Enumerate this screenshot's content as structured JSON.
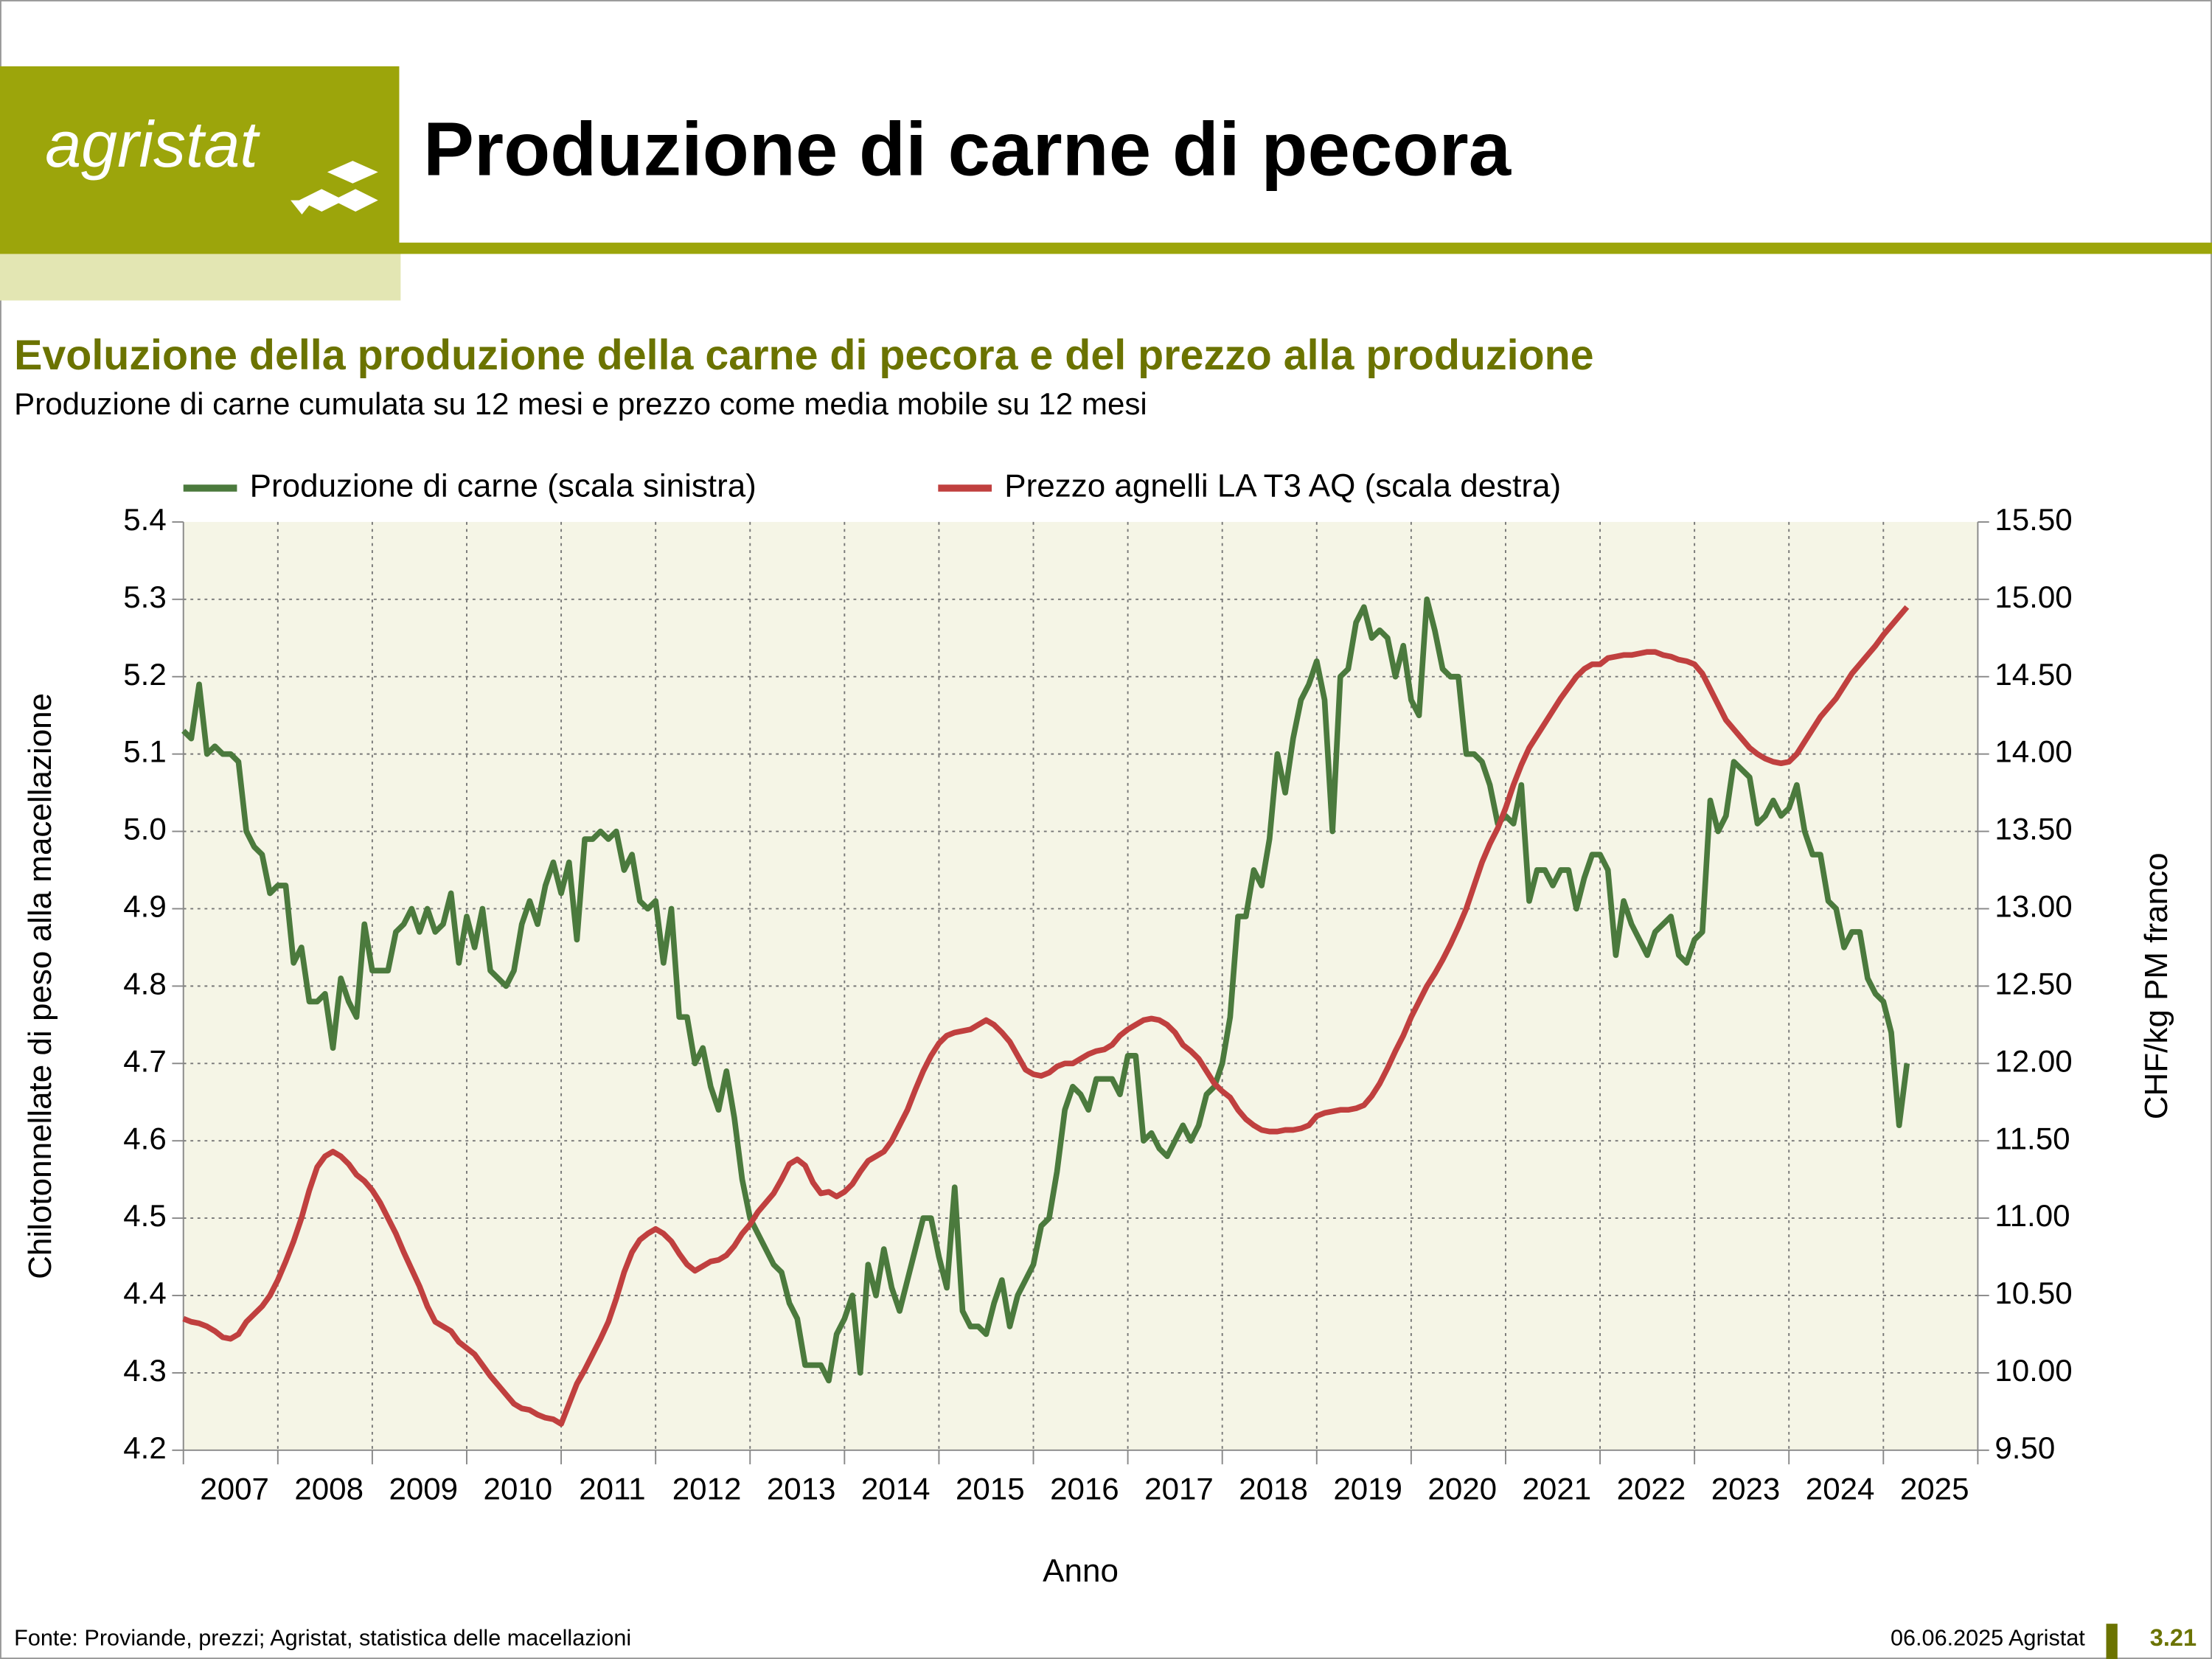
{
  "header": {
    "logo": "agristat",
    "title": "Produzione di carne di pecora"
  },
  "footer": {
    "source": "Fonte: Proviande, prezzi; Agristat, statistica delle macellazioni",
    "date": "06.06.2025 Agristat",
    "page": "3.21"
  },
  "chart_data": {
    "type": "line",
    "title": "Evoluzione della produzione della carne di pecora e del prezzo alla produzione",
    "subtitle": "Produzione di carne cumulata su 12 mesi e prezzo come media mobile su 12 mesi",
    "x_label": "Anno",
    "y_label": "Chilotonnellate di peso alla macellazione",
    "y2_label": "CHF/kg PM franco",
    "legend": "top",
    "grid": true,
    "categories": [
      null,
      null,
      null,
      null,
      null,
      null,
      "2007",
      null,
      null,
      null,
      null,
      null,
      null,
      null,
      null,
      null,
      null,
      null,
      "2008",
      null,
      null,
      null,
      null,
      null,
      null,
      null,
      null,
      null,
      null,
      null,
      "2009",
      null,
      null,
      null,
      null,
      null,
      null,
      null,
      null,
      null,
      null,
      null,
      "2010",
      null,
      null,
      null,
      null,
      null,
      null,
      null,
      null,
      null,
      null,
      null,
      "2011",
      null,
      null,
      null,
      null,
      null,
      null,
      null,
      null,
      null,
      null,
      null,
      "2012",
      null,
      null,
      null,
      null,
      null,
      null,
      null,
      null,
      null,
      null,
      null,
      "2013",
      null,
      null,
      null,
      null,
      null,
      null,
      null,
      null,
      null,
      null,
      null,
      "2014",
      null,
      null,
      null,
      null,
      null,
      null,
      null,
      null,
      null,
      null,
      null,
      "2015",
      null,
      null,
      null,
      null,
      null,
      null,
      null,
      null,
      null,
      null,
      null,
      "2016",
      null,
      null,
      null,
      null,
      null,
      null,
      null,
      null,
      null,
      null,
      null,
      "2017",
      null,
      null,
      null,
      null,
      null,
      null,
      null,
      null,
      null,
      null,
      null,
      "2018",
      null,
      null,
      null,
      null,
      null,
      null,
      null,
      null,
      null,
      null,
      null,
      "2019",
      null,
      null,
      null,
      null,
      null,
      null,
      null,
      null,
      null,
      null,
      null,
      "2020",
      null,
      null,
      null,
      null,
      null,
      null,
      null,
      null,
      null,
      null,
      null,
      "2021",
      null,
      null,
      null,
      null,
      null,
      null,
      null,
      null,
      null,
      null,
      null,
      "2022",
      null,
      null,
      null,
      null,
      null,
      null,
      null,
      null,
      null,
      null,
      null,
      "2023",
      null,
      null,
      null,
      null,
      null,
      null,
      null,
      null,
      null,
      null,
      null,
      "2024",
      null,
      null,
      null,
      null,
      null,
      null,
      null,
      null,
      null,
      null,
      null,
      "2025",
      null,
      null,
      null,
      null,
      null
    ],
    "ylim": [
      4.2,
      5.4
    ],
    "yticks": [
      4.2,
      4.3,
      4.4,
      4.5,
      4.6,
      4.7,
      4.8,
      4.9,
      {
        "value": 5,
        "label": "5.0"
      },
      5.1,
      5.2,
      5.3,
      5.4
    ],
    "y2lim": [
      9.5,
      15.5
    ],
    "y2ticks": [
      {
        "value": 9.5,
        "label": "9.50"
      },
      {
        "value": 10,
        "label": "10.00"
      },
      {
        "value": 10.5,
        "label": "10.50"
      },
      {
        "value": 11,
        "label": "11.00"
      },
      {
        "value": 11.5,
        "label": "11.50"
      },
      {
        "value": 12,
        "label": "12.00"
      },
      {
        "value": 12.5,
        "label": "12.50"
      },
      {
        "value": 13,
        "label": "13.00"
      },
      {
        "value": 13.5,
        "label": "13.50"
      },
      {
        "value": 14,
        "label": "14.00"
      },
      {
        "value": 14.5,
        "label": "14.50"
      },
      {
        "value": 15,
        "label": "15.00"
      },
      {
        "value": 15.5,
        "label": "15.50"
      }
    ],
    "series": [
      {
        "name": "Produzione di carne (scala sinistra)",
        "color": "#4b7a3d",
        "axis": "y",
        "values": [
          5.13,
          5.12,
          5.19,
          5.1,
          5.11,
          5.1,
          5.1,
          5.09,
          5.0,
          4.98,
          4.97,
          4.92,
          4.93,
          4.93,
          4.83,
          4.85,
          4.78,
          4.78,
          4.79,
          4.72,
          4.81,
          4.78,
          4.76,
          4.88,
          4.82,
          4.82,
          4.82,
          4.87,
          4.88,
          4.9,
          4.87,
          4.9,
          4.87,
          4.88,
          4.92,
          4.83,
          4.89,
          4.85,
          4.9,
          4.82,
          4.81,
          4.8,
          4.82,
          4.88,
          4.91,
          4.88,
          4.93,
          4.96,
          4.92,
          4.96,
          4.86,
          4.99,
          4.99,
          5.0,
          4.99,
          5.0,
          4.95,
          4.97,
          4.91,
          4.9,
          4.91,
          4.83,
          4.9,
          4.76,
          4.76,
          4.7,
          4.72,
          4.67,
          4.64,
          4.69,
          4.63,
          4.55,
          4.5,
          4.48,
          4.46,
          4.44,
          4.43,
          4.39,
          4.37,
          4.31,
          4.31,
          4.31,
          4.29,
          4.35,
          4.37,
          4.4,
          4.3,
          4.44,
          4.4,
          4.46,
          4.41,
          4.38,
          4.42,
          4.46,
          4.5,
          4.5,
          4.45,
          4.41,
          4.54,
          4.38,
          4.36,
          4.36,
          4.35,
          4.39,
          4.42,
          4.36,
          4.4,
          4.42,
          4.44,
          4.49,
          4.5,
          4.56,
          4.64,
          4.67,
          4.66,
          4.64,
          4.68,
          4.68,
          4.68,
          4.66,
          4.71,
          4.71,
          4.6,
          4.61,
          4.59,
          4.58,
          4.6,
          4.62,
          4.6,
          4.62,
          4.66,
          4.67,
          4.7,
          4.76,
          4.89,
          4.89,
          4.95,
          4.93,
          4.99,
          5.1,
          5.05,
          5.12,
          5.17,
          5.19,
          5.22,
          5.17,
          5.0,
          5.2,
          5.21,
          5.27,
          5.29,
          5.25,
          5.26,
          5.25,
          5.2,
          5.24,
          5.17,
          5.15,
          5.3,
          5.26,
          5.21,
          5.2,
          5.2,
          5.1,
          5.1,
          5.09,
          5.06,
          5.01,
          5.02,
          5.01,
          5.06,
          4.91,
          4.95,
          4.95,
          4.93,
          4.95,
          4.95,
          4.9,
          4.94,
          4.97,
          4.97,
          4.95,
          4.84,
          4.91,
          4.88,
          4.86,
          4.84,
          4.87,
          4.88,
          4.89,
          4.84,
          4.83,
          4.86,
          4.87,
          5.04,
          5.0,
          5.02,
          5.09,
          5.08,
          5.07,
          5.01,
          5.02,
          5.04,
          5.02,
          5.03,
          5.06,
          5.0,
          4.97,
          4.97,
          4.91,
          4.9,
          4.85,
          4.87,
          4.87,
          4.81,
          4.79,
          4.78,
          4.74,
          4.62,
          4.7,
          null,
          null,
          null,
          null,
          null,
          null,
          null,
          null
        ]
      },
      {
        "name": "Prezzo agnelli LA T3 AQ (scala destra)",
        "color": "#c0403f",
        "axis": "y2",
        "values": [
          10.35,
          10.33,
          10.32,
          10.3,
          10.27,
          10.23,
          10.22,
          10.25,
          10.33,
          10.38,
          10.43,
          10.5,
          10.6,
          10.72,
          10.85,
          11.0,
          11.18,
          11.33,
          11.4,
          11.43,
          11.4,
          11.35,
          11.28,
          11.24,
          11.18,
          11.1,
          11.0,
          10.9,
          10.78,
          10.67,
          10.56,
          10.43,
          10.33,
          10.3,
          10.27,
          10.2,
          10.16,
          10.12,
          10.05,
          9.98,
          9.92,
          9.86,
          9.8,
          9.77,
          9.76,
          9.73,
          9.71,
          9.7,
          9.67,
          9.8,
          9.93,
          10.02,
          10.12,
          10.22,
          10.33,
          10.48,
          10.65,
          10.78,
          10.86,
          10.9,
          10.93,
          10.9,
          10.85,
          10.77,
          10.7,
          10.66,
          10.69,
          10.72,
          10.73,
          10.76,
          10.82,
          10.9,
          10.96,
          11.04,
          11.1,
          11.16,
          11.25,
          11.35,
          11.38,
          11.34,
          11.23,
          11.16,
          11.17,
          11.14,
          11.17,
          11.22,
          11.3,
          11.37,
          11.4,
          11.43,
          11.5,
          11.6,
          11.7,
          11.83,
          11.95,
          12.05,
          12.13,
          12.18,
          12.2,
          12.21,
          12.22,
          12.25,
          12.28,
          12.25,
          12.2,
          12.14,
          12.05,
          11.96,
          11.93,
          11.92,
          11.94,
          11.98,
          12.0,
          12.0,
          12.03,
          12.06,
          12.08,
          12.09,
          12.12,
          12.18,
          12.22,
          12.25,
          12.28,
          12.29,
          12.28,
          12.25,
          12.2,
          12.12,
          12.08,
          12.03,
          11.95,
          11.87,
          11.82,
          11.78,
          11.7,
          11.64,
          11.6,
          11.57,
          11.56,
          11.56,
          11.57,
          11.57,
          11.58,
          11.6,
          11.66,
          11.68,
          11.69,
          11.7,
          11.7,
          11.71,
          11.73,
          11.79,
          11.87,
          11.97,
          12.08,
          12.18,
          12.3,
          12.4,
          12.5,
          12.58,
          12.67,
          12.77,
          12.88,
          13.0,
          13.15,
          13.3,
          13.42,
          13.52,
          13.65,
          13.8,
          13.93,
          14.04,
          14.12,
          14.2,
          14.28,
          14.36,
          14.43,
          14.5,
          14.55,
          14.58,
          14.58,
          14.62,
          14.63,
          14.64,
          14.64,
          14.65,
          14.66,
          14.66,
          14.64,
          14.63,
          14.61,
          14.6,
          14.58,
          14.52,
          14.42,
          14.32,
          14.22,
          14.16,
          14.1,
          14.04,
          14.0,
          13.97,
          13.95,
          13.94,
          13.95,
          14.0,
          14.08,
          14.16,
          14.24,
          14.3,
          14.36,
          14.44,
          14.52,
          14.58,
          14.64,
          14.7,
          14.77,
          14.83,
          14.89,
          14.95,
          null,
          null,
          null,
          null,
          null,
          null,
          null,
          null
        ]
      }
    ]
  }
}
